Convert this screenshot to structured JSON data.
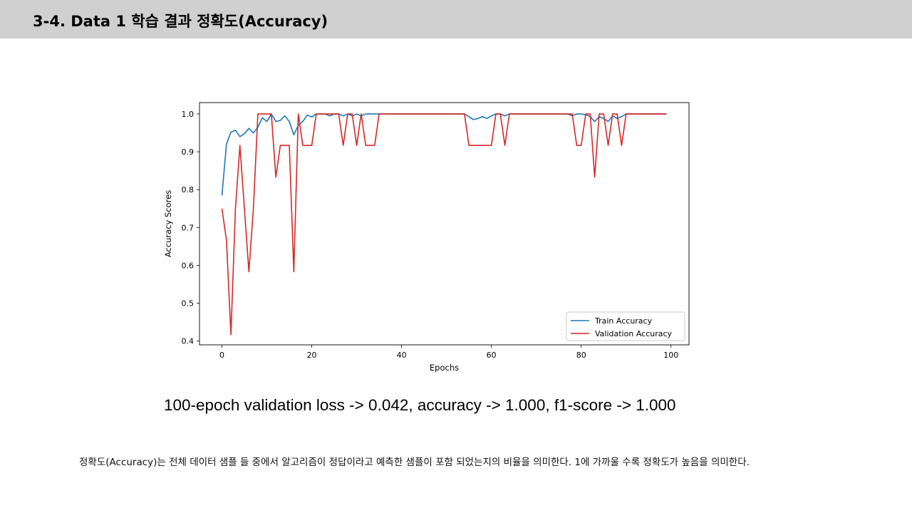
{
  "slide": {
    "title": "3-4. Data 1 학습 결과 정확도(Accuracy)",
    "metrics": "100-epoch validation loss -> 0.042, accuracy -> 1.000, f1-score -> 1.000",
    "description": "정확도(Accuracy)는 전체 데이터 샘플 들 중에서 알고리즘이 정답이라고 예측한 샘플이 포함 되었는지의 비율을 의미한다. 1에 가까울 수록 정확도가 높음을 의미한다."
  },
  "chart_data": {
    "type": "line",
    "title": "",
    "xlabel": "Epochs",
    "ylabel": "Accuracy Scores",
    "xlim": [
      -5,
      104
    ],
    "ylim": [
      0.39,
      1.03
    ],
    "xticks": [
      0,
      20,
      40,
      60,
      80,
      100
    ],
    "yticks": [
      0.4,
      0.5,
      0.6,
      0.7,
      0.8,
      0.9,
      1.0
    ],
    "grid": false,
    "legend_position": "lower-right",
    "x": [
      0,
      1,
      2,
      3,
      4,
      5,
      6,
      7,
      8,
      9,
      10,
      11,
      12,
      13,
      14,
      15,
      16,
      17,
      18,
      19,
      20,
      21,
      22,
      23,
      24,
      25,
      26,
      27,
      28,
      29,
      30,
      31,
      32,
      33,
      34,
      35,
      36,
      37,
      38,
      39,
      40,
      41,
      42,
      43,
      44,
      45,
      46,
      47,
      48,
      49,
      50,
      51,
      52,
      53,
      54,
      55,
      56,
      57,
      58,
      59,
      60,
      61,
      62,
      63,
      64,
      65,
      66,
      67,
      68,
      69,
      70,
      71,
      72,
      73,
      74,
      75,
      76,
      77,
      78,
      79,
      80,
      81,
      82,
      83,
      84,
      85,
      86,
      87,
      88,
      89,
      90,
      91,
      92,
      93,
      94,
      95,
      96,
      97,
      98,
      99
    ],
    "series": [
      {
        "name": "Train Accuracy",
        "color": "#1f77b4",
        "values": [
          0.785,
          0.92,
          0.952,
          0.957,
          0.94,
          0.948,
          0.962,
          0.95,
          0.965,
          0.99,
          0.98,
          1.0,
          0.98,
          0.983,
          0.995,
          0.98,
          0.945,
          0.97,
          0.98,
          0.997,
          0.992,
          1.0,
          1.0,
          1.0,
          0.995,
          1.0,
          1.0,
          0.995,
          1.0,
          0.995,
          1.0,
          0.995,
          1.0,
          1.0,
          1.0,
          1.0,
          1.0,
          1.0,
          1.0,
          1.0,
          1.0,
          1.0,
          1.0,
          1.0,
          1.0,
          1.0,
          1.0,
          1.0,
          1.0,
          1.0,
          1.0,
          1.0,
          1.0,
          1.0,
          1.0,
          0.993,
          0.985,
          0.988,
          0.993,
          0.988,
          0.995,
          1.0,
          1.0,
          0.995,
          1.0,
          1.0,
          1.0,
          1.0,
          1.0,
          1.0,
          1.0,
          1.0,
          1.0,
          1.0,
          1.0,
          1.0,
          1.0,
          1.0,
          0.995,
          1.0,
          1.0,
          0.998,
          0.993,
          0.98,
          0.993,
          0.988,
          0.98,
          0.995,
          0.988,
          0.993,
          1.0,
          1.0,
          1.0,
          1.0,
          1.0,
          1.0,
          1.0,
          1.0,
          1.0,
          1.0
        ]
      },
      {
        "name": "Validation Accuracy",
        "color": "#d62728",
        "values": [
          0.75,
          0.667,
          0.417,
          0.75,
          0.917,
          0.75,
          0.583,
          0.75,
          1.0,
          1.0,
          1.0,
          1.0,
          0.833,
          0.917,
          0.917,
          0.917,
          0.583,
          1.0,
          0.917,
          0.917,
          0.917,
          1.0,
          1.0,
          1.0,
          1.0,
          1.0,
          1.0,
          0.917,
          1.0,
          1.0,
          0.917,
          1.0,
          0.917,
          0.917,
          0.917,
          1.0,
          1.0,
          1.0,
          1.0,
          1.0,
          1.0,
          1.0,
          1.0,
          1.0,
          1.0,
          1.0,
          1.0,
          1.0,
          1.0,
          1.0,
          1.0,
          1.0,
          1.0,
          1.0,
          1.0,
          0.917,
          0.917,
          0.917,
          0.917,
          0.917,
          0.917,
          1.0,
          1.0,
          0.917,
          1.0,
          1.0,
          1.0,
          1.0,
          1.0,
          1.0,
          1.0,
          1.0,
          1.0,
          1.0,
          1.0,
          1.0,
          1.0,
          1.0,
          1.0,
          0.917,
          0.917,
          1.0,
          1.0,
          0.833,
          1.0,
          1.0,
          0.917,
          1.0,
          1.0,
          0.917,
          1.0,
          1.0,
          1.0,
          1.0,
          1.0,
          1.0,
          1.0,
          1.0,
          1.0,
          1.0
        ]
      }
    ]
  }
}
